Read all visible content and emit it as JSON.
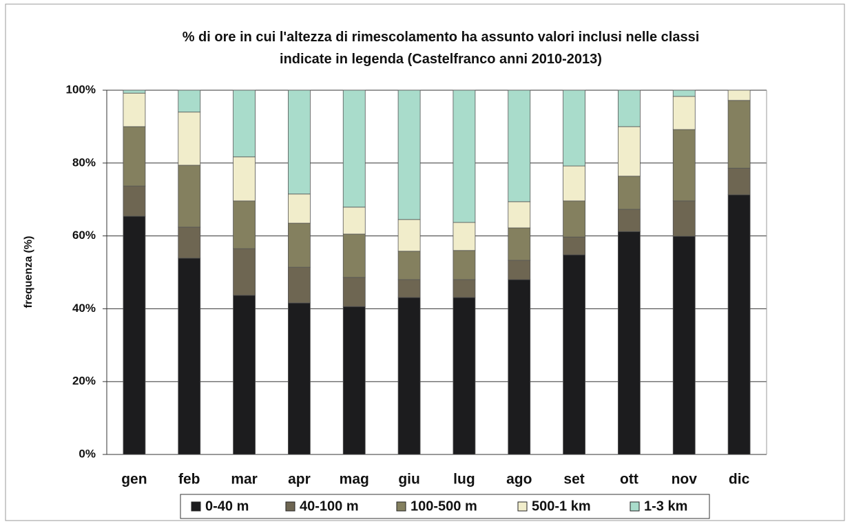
{
  "chart_data": {
    "type": "stacked_bar",
    "title": "% di ore in cui l'altezza di rimescolamento ha assunto valori inclusi nelle classi indicate in legenda (Castelfranco anni 2010-2013)",
    "y_label": "frequenza (%)",
    "categories": [
      "gen",
      "feb",
      "mar",
      "apr",
      "mag",
      "giu",
      "lug",
      "ago",
      "set",
      "ott",
      "nov",
      "dic"
    ],
    "series": [
      {
        "name": "0-40 m",
        "color": "#1c1c1e",
        "values": [
          65.4,
          53.9,
          43.7,
          41.6,
          40.6,
          43.1,
          43.1,
          48.0,
          54.8,
          61.2,
          59.9,
          71.3
        ]
      },
      {
        "name": "40-100 m",
        "color": "#6e6652",
        "values": [
          8.3,
          8.5,
          12.8,
          9.8,
          8.0,
          4.9,
          4.9,
          5.3,
          4.9,
          6.1,
          9.7,
          7.3
        ]
      },
      {
        "name": "100-500 m",
        "color": "#84805f",
        "values": [
          16.3,
          17.0,
          13.1,
          12.1,
          11.9,
          7.8,
          8.0,
          8.9,
          9.9,
          9.1,
          19.6,
          18.6
        ]
      },
      {
        "name": "500-1 km",
        "color": "#f1edcb",
        "values": [
          9.2,
          14.6,
          12.1,
          8.0,
          7.4,
          8.7,
          7.7,
          7.2,
          9.6,
          13.6,
          9.1,
          2.8
        ]
      },
      {
        "name": "1-3 km",
        "color": "#a9dccb",
        "values": [
          0.8,
          6.0,
          18.3,
          28.5,
          32.1,
          35.5,
          36.3,
          30.6,
          20.8,
          10.0,
          1.7,
          0
        ]
      }
    ],
    "ylim": [
      0,
      100
    ],
    "yticks": [
      {
        "value": 0,
        "label": "0%"
      },
      {
        "value": 20,
        "label": "20%"
      },
      {
        "value": 40,
        "label": "40%"
      },
      {
        "value": 60,
        "label": "60%"
      },
      {
        "value": 80,
        "label": "80%"
      },
      {
        "value": 100,
        "label": "100%"
      }
    ],
    "grid": true
  }
}
